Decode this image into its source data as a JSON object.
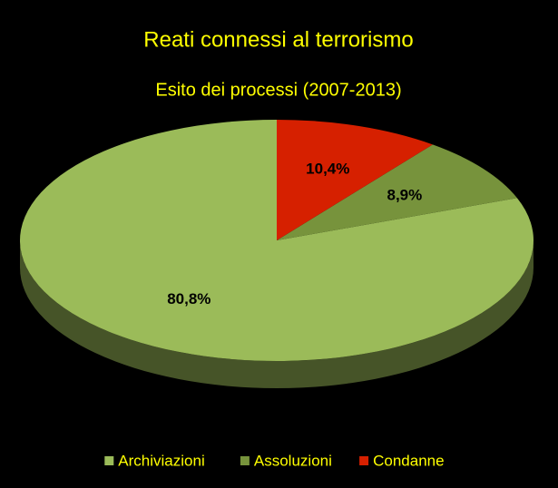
{
  "chart_data": {
    "type": "pie",
    "title": "Reati connessi al terrorismo",
    "subtitle": "Esito dei processi (2007-2013)",
    "categories": [
      "Archiviazioni",
      "Assoluzioni",
      "Condanne"
    ],
    "values": [
      80.8,
      8.9,
      10.4
    ],
    "value_labels": [
      "80,8%",
      "8,9%",
      "10,4%"
    ],
    "colors": [
      "#9bbb59",
      "#77933c",
      "#d62000"
    ],
    "legend": "bottom"
  }
}
